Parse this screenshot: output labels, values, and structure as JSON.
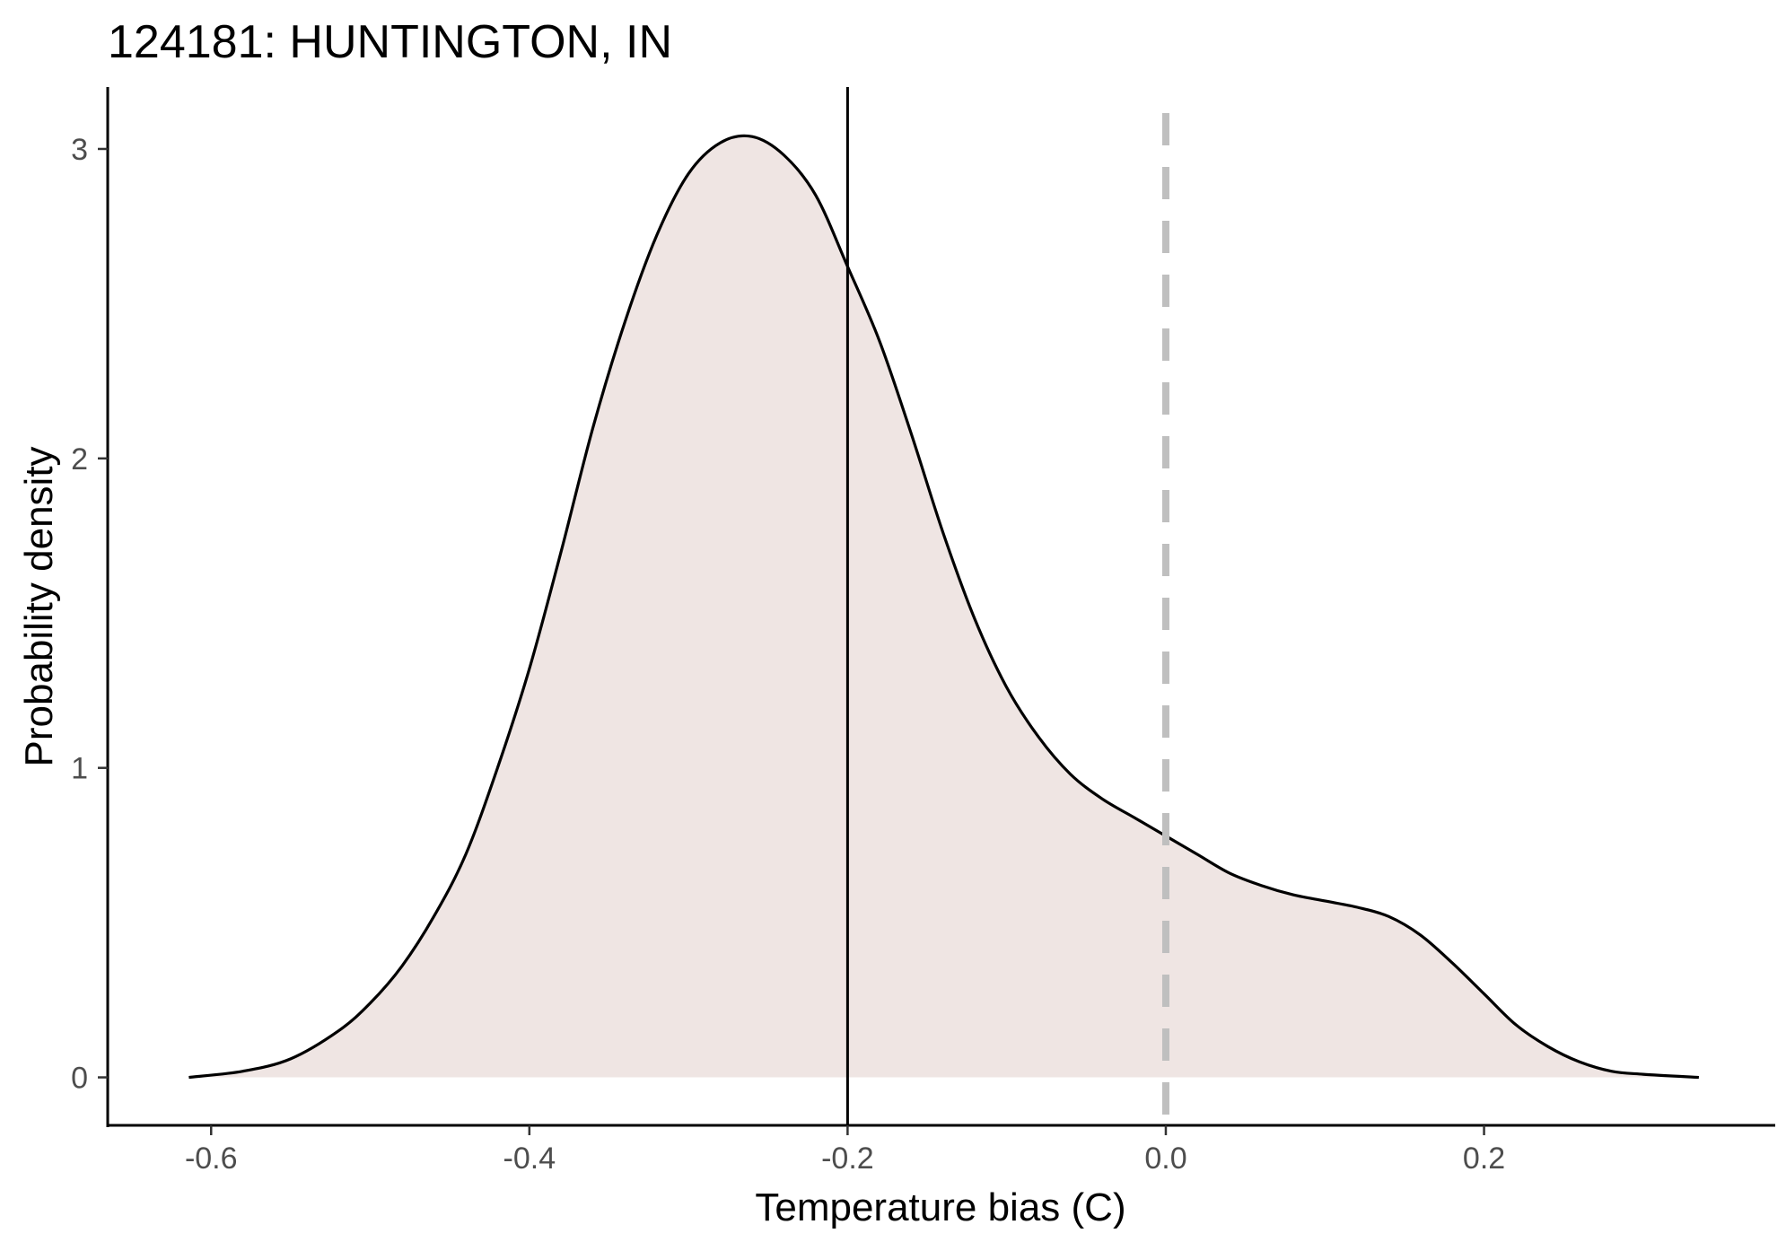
{
  "chart_data": {
    "type": "area",
    "title": "124181: HUNTINGTON, IN",
    "xlabel": "Temperature bias (C)",
    "ylabel": "Probability density",
    "xlim": [
      -0.665,
      0.383
    ],
    "ylim": [
      -0.155,
      3.2
    ],
    "x_ticks": [
      -0.6,
      -0.4,
      -0.2,
      0.0,
      0.2
    ],
    "x_tick_labels": [
      "-0.6",
      "-0.4",
      "-0.2",
      "0.0",
      "0.2"
    ],
    "y_ticks": [
      0,
      1,
      2,
      3
    ],
    "y_tick_labels": [
      "0",
      "1",
      "2",
      "3"
    ],
    "grid": false,
    "series": [
      {
        "values": [
          [
            -0.614,
            0.0
          ],
          [
            -0.58,
            0.02
          ],
          [
            -0.55,
            0.06
          ],
          [
            -0.52,
            0.15
          ],
          [
            -0.5,
            0.24
          ],
          [
            -0.48,
            0.36
          ],
          [
            -0.46,
            0.52
          ],
          [
            -0.44,
            0.72
          ],
          [
            -0.42,
            1.0
          ],
          [
            -0.4,
            1.32
          ],
          [
            -0.38,
            1.7
          ],
          [
            -0.36,
            2.1
          ],
          [
            -0.34,
            2.44
          ],
          [
            -0.32,
            2.72
          ],
          [
            -0.3,
            2.92
          ],
          [
            -0.28,
            3.02
          ],
          [
            -0.26,
            3.04
          ],
          [
            -0.24,
            2.98
          ],
          [
            -0.22,
            2.85
          ],
          [
            -0.2,
            2.62
          ],
          [
            -0.18,
            2.38
          ],
          [
            -0.16,
            2.08
          ],
          [
            -0.14,
            1.76
          ],
          [
            -0.12,
            1.48
          ],
          [
            -0.1,
            1.26
          ],
          [
            -0.08,
            1.1
          ],
          [
            -0.06,
            0.98
          ],
          [
            -0.04,
            0.9
          ],
          [
            -0.02,
            0.84
          ],
          [
            0.0,
            0.78
          ],
          [
            0.02,
            0.72
          ],
          [
            0.04,
            0.66
          ],
          [
            0.06,
            0.62
          ],
          [
            0.08,
            0.59
          ],
          [
            0.1,
            0.57
          ],
          [
            0.12,
            0.55
          ],
          [
            0.14,
            0.52
          ],
          [
            0.16,
            0.46
          ],
          [
            0.18,
            0.37
          ],
          [
            0.2,
            0.27
          ],
          [
            0.22,
            0.17
          ],
          [
            0.24,
            0.1
          ],
          [
            0.26,
            0.05
          ],
          [
            0.28,
            0.02
          ],
          [
            0.3,
            0.01
          ],
          [
            0.335,
            0.0
          ]
        ],
        "fill": "#efe5e3",
        "stroke": "#000000"
      }
    ],
    "reference_lines": [
      {
        "x": -0.2,
        "style": "solid",
        "color": "#000000"
      },
      {
        "x": 0.0,
        "style": "dashed",
        "color": "#bfbfbf"
      }
    ]
  }
}
